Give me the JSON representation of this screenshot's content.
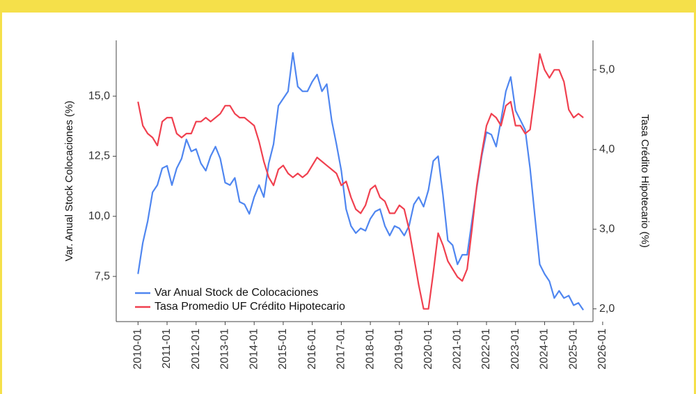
{
  "chart_data": {
    "type": "line",
    "y_label": "Var. Anual Stock Colocaciones (%)",
    "y2_label": "Tasa Crédito Hipotecario (%)",
    "x": [
      "2010-01",
      "2010-03",
      "2010-05",
      "2010-07",
      "2010-09",
      "2010-11",
      "2011-01",
      "2011-03",
      "2011-05",
      "2011-07",
      "2011-09",
      "2011-11",
      "2012-01",
      "2012-03",
      "2012-05",
      "2012-07",
      "2012-09",
      "2012-11",
      "2013-01",
      "2013-03",
      "2013-05",
      "2013-07",
      "2013-09",
      "2013-11",
      "2014-01",
      "2014-03",
      "2014-05",
      "2014-07",
      "2014-09",
      "2014-11",
      "2015-01",
      "2015-03",
      "2015-05",
      "2015-07",
      "2015-09",
      "2015-11",
      "2016-01",
      "2016-03",
      "2016-05",
      "2016-07",
      "2016-09",
      "2016-11",
      "2017-01",
      "2017-03",
      "2017-05",
      "2017-07",
      "2017-09",
      "2017-11",
      "2018-01",
      "2018-03",
      "2018-05",
      "2018-07",
      "2018-09",
      "2018-11",
      "2019-01",
      "2019-03",
      "2019-05",
      "2019-07",
      "2019-09",
      "2019-11",
      "2020-01",
      "2020-03",
      "2020-05",
      "2020-07",
      "2020-09",
      "2020-11",
      "2021-01",
      "2021-03",
      "2021-05",
      "2021-07",
      "2021-09",
      "2021-11",
      "2022-01",
      "2022-03",
      "2022-05",
      "2022-07",
      "2022-09",
      "2022-11",
      "2023-01",
      "2023-03",
      "2023-05",
      "2023-07",
      "2023-09",
      "2023-11",
      "2024-01",
      "2024-03",
      "2024-05",
      "2024-07",
      "2024-09",
      "2024-11",
      "2025-01",
      "2025-03",
      "2025-05"
    ],
    "series": [
      {
        "name": "Var Anual Stock de Colocaciones",
        "color": "#4f86f0",
        "axis": "y",
        "values": [
          7.6,
          8.9,
          9.8,
          11.0,
          11.3,
          12.0,
          12.1,
          11.3,
          12.0,
          12.4,
          13.2,
          12.7,
          12.8,
          12.2,
          11.9,
          12.5,
          12.9,
          12.4,
          11.4,
          11.3,
          11.6,
          10.6,
          10.5,
          10.1,
          10.8,
          11.3,
          10.8,
          12.2,
          13.0,
          14.6,
          14.9,
          15.2,
          16.8,
          15.4,
          15.2,
          15.2,
          15.6,
          15.9,
          15.2,
          15.5,
          14.0,
          13.0,
          11.9,
          10.3,
          9.6,
          9.3,
          9.5,
          9.4,
          9.9,
          10.2,
          10.3,
          9.6,
          9.2,
          9.6,
          9.5,
          9.2,
          9.6,
          10.5,
          10.8,
          10.4,
          11.1,
          12.3,
          12.5,
          10.9,
          9.0,
          8.8,
          8.0,
          8.4,
          8.4,
          9.8,
          11.2,
          12.5,
          13.5,
          13.4,
          12.9,
          14.0,
          15.2,
          15.8,
          14.4,
          14.0,
          13.6,
          12.0,
          10.0,
          8.0,
          7.6,
          7.3,
          6.6,
          6.9,
          6.6,
          6.7,
          6.3,
          6.4,
          6.1
        ]
      },
      {
        "name": "Tasa Promedio UF Crédito Hipotecario",
        "color": "#f0404f",
        "axis": "y2",
        "values": [
          4.6,
          4.3,
          4.2,
          4.15,
          4.05,
          4.35,
          4.4,
          4.4,
          4.2,
          4.15,
          4.2,
          4.2,
          4.35,
          4.35,
          4.4,
          4.35,
          4.4,
          4.45,
          4.55,
          4.55,
          4.45,
          4.4,
          4.4,
          4.35,
          4.3,
          4.1,
          3.85,
          3.65,
          3.55,
          3.75,
          3.8,
          3.7,
          3.65,
          3.7,
          3.65,
          3.7,
          3.8,
          3.9,
          3.85,
          3.8,
          3.75,
          3.7,
          3.55,
          3.6,
          3.4,
          3.25,
          3.2,
          3.3,
          3.5,
          3.55,
          3.4,
          3.35,
          3.2,
          3.2,
          3.3,
          3.25,
          3.0,
          2.65,
          2.3,
          2.0,
          2.0,
          2.45,
          2.95,
          2.8,
          2.6,
          2.5,
          2.4,
          2.35,
          2.5,
          3.0,
          3.55,
          3.95,
          4.3,
          4.45,
          4.4,
          4.3,
          4.55,
          4.6,
          4.3,
          4.3,
          4.2,
          4.25,
          4.7,
          5.2,
          5.0,
          4.9,
          5.0,
          5.0,
          4.85,
          4.5,
          4.4,
          4.45,
          4.4
        ]
      }
    ],
    "xlim": [
      "2009-04",
      "2025-09"
    ],
    "xticks": [
      "2010-01",
      "2011-01",
      "2012-01",
      "2013-01",
      "2014-01",
      "2015-01",
      "2016-01",
      "2017-01",
      "2018-01",
      "2019-01",
      "2020-01",
      "2021-01",
      "2022-01",
      "2023-01",
      "2024-01",
      "2025-01",
      "2026-01"
    ],
    "ylim": [
      5.62,
      17.32
    ],
    "yticks": [
      {
        "value": 7.5,
        "label": "7,5"
      },
      {
        "value": 10,
        "label": "10,0"
      },
      {
        "value": 12.5,
        "label": "12,5"
      },
      {
        "value": 15,
        "label": "15,0"
      }
    ],
    "y2lim": [
      1.84,
      5.37
    ],
    "y2ticks": [
      {
        "value": 2,
        "label": "2,0"
      },
      {
        "value": 3,
        "label": "3,0"
      },
      {
        "value": 4,
        "label": "4,0"
      },
      {
        "value": 5,
        "label": "5,0"
      }
    ],
    "legend": "bottom-left"
  }
}
